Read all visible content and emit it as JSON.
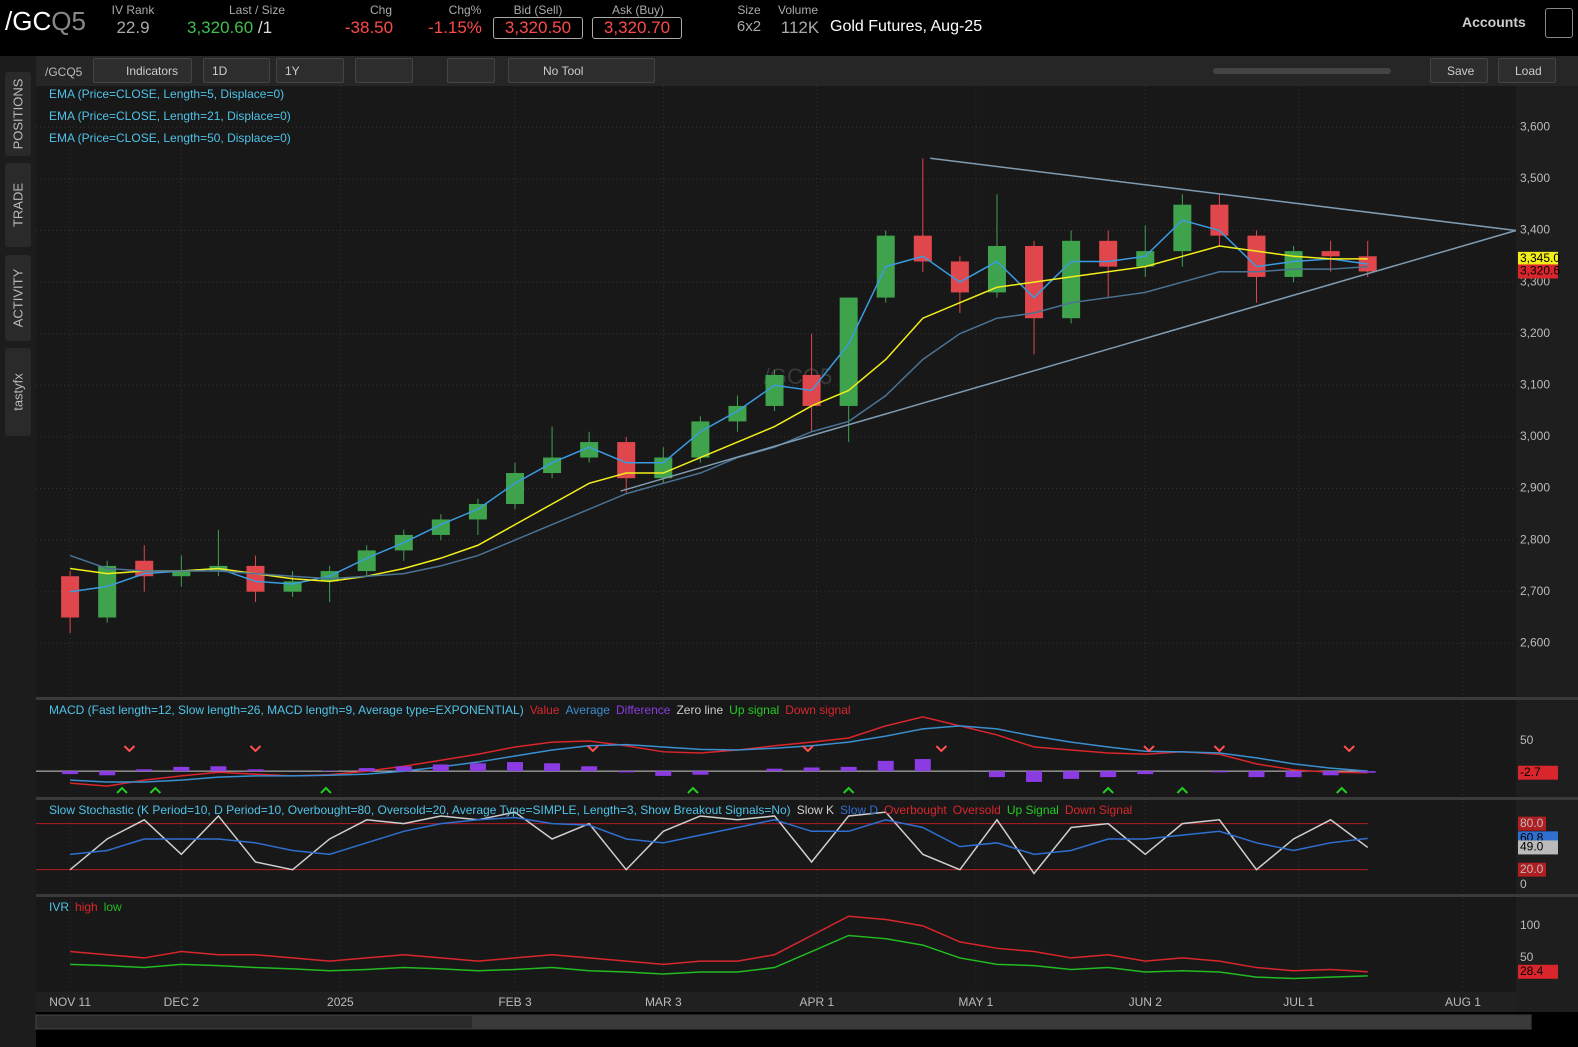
{
  "header": {
    "symbol": "/GC",
    "symbol_suffix": "Q5",
    "fields": [
      {
        "label": "IV Rank",
        "value": "22.9"
      },
      {
        "label": "Last / Size",
        "value": "3,320.60",
        "suffix": "/1"
      },
      {
        "label": "Chg",
        "value": "-38.50"
      },
      {
        "label": "Chg%",
        "value": "-1.15%"
      },
      {
        "label": "Bid (Sell)",
        "value": "3,320.50"
      },
      {
        "label": "Ask (Buy)",
        "value": "3,320.70"
      },
      {
        "label": "Size",
        "value": "6x2"
      },
      {
        "label": "Volume",
        "value": "112K"
      }
    ],
    "description": "Gold Futures, Aug-25",
    "accounts": "Accounts"
  },
  "sidebar": {
    "tabs": [
      "POSITIONS",
      "TRADE",
      "ACTIVITY",
      "tastyfx"
    ]
  },
  "toolbar": {
    "symbol": "/GCQ5",
    "indicators": "Indicators",
    "aggregation": "1D",
    "period": "1Y",
    "tool": "No Tool",
    "save": "Save",
    "load": "Load"
  },
  "chart_data": [
    {
      "type": "candlestick",
      "watermark": "/GCQ5",
      "up_color": "#3fa34d",
      "down_color": "#e0474c",
      "open": [
        2730,
        2650,
        2760,
        2730,
        2740,
        2750,
        2700,
        2720,
        2740,
        2780,
        2810,
        2840,
        2870,
        2930,
        2960,
        2990,
        2920,
        2960,
        3030,
        3060,
        3120,
        3060,
        3270,
        3390,
        3340,
        3280,
        3370,
        3230,
        3380,
        3330,
        3360,
        3450,
        3390,
        3310,
        3360,
        3350
      ],
      "high": [
        2740,
        2760,
        2790,
        2770,
        2820,
        2770,
        2740,
        2750,
        2790,
        2820,
        2850,
        2880,
        2950,
        3020,
        3010,
        3000,
        2980,
        3040,
        3080,
        3130,
        3200,
        3270,
        3400,
        3540,
        3350,
        3470,
        3380,
        3400,
        3400,
        3410,
        3470,
        3470,
        3400,
        3370,
        3380,
        3380
      ],
      "low": [
        2620,
        2640,
        2700,
        2710,
        2730,
        2680,
        2690,
        2680,
        2730,
        2760,
        2800,
        2810,
        2860,
        2920,
        2950,
        2890,
        2910,
        2950,
        3010,
        3050,
        3010,
        2990,
        3260,
        3320,
        3240,
        3270,
        3160,
        3220,
        3270,
        3310,
        3330,
        3370,
        3260,
        3300,
        3320,
        3310
      ],
      "close": [
        2650,
        2750,
        2730,
        2740,
        2750,
        2700,
        2720,
        2740,
        2780,
        2810,
        2840,
        2870,
        2930,
        2960,
        2990,
        2920,
        2960,
        3030,
        3060,
        3120,
        3060,
        3270,
        3390,
        3340,
        3280,
        3370,
        3230,
        3380,
        3330,
        3360,
        3450,
        3390,
        3310,
        3360,
        3350,
        3320.6
      ],
      "series": [
        {
          "name": "EMA (Price=CLOSE, Length=5, Displace=0)",
          "color": "#3a9be0",
          "values": [
            2700,
            2710,
            2735,
            2740,
            2745,
            2720,
            2715,
            2730,
            2765,
            2795,
            2830,
            2860,
            2910,
            2950,
            2980,
            2950,
            2950,
            3010,
            3050,
            3100,
            3090,
            3180,
            3330,
            3350,
            3300,
            3340,
            3270,
            3340,
            3340,
            3350,
            3420,
            3400,
            3330,
            3340,
            3345,
            3335
          ]
        },
        {
          "name": "EMA (Price=CLOSE, Length=21, Displace=0)",
          "color": "#f2ee1a",
          "values": [
            2745,
            2735,
            2740,
            2740,
            2745,
            2735,
            2725,
            2720,
            2730,
            2745,
            2765,
            2790,
            2830,
            2870,
            2910,
            2930,
            2930,
            2960,
            2990,
            3020,
            3060,
            3090,
            3150,
            3230,
            3260,
            3290,
            3300,
            3310,
            3320,
            3330,
            3350,
            3370,
            3360,
            3350,
            3345,
            3345
          ]
        },
        {
          "name": "EMA (Price=CLOSE, Length=50, Displace=0)",
          "color": "#4a7395",
          "values": [
            2770,
            2745,
            2740,
            2740,
            2740,
            2735,
            2730,
            2725,
            2730,
            2735,
            2750,
            2770,
            2800,
            2830,
            2860,
            2890,
            2910,
            2930,
            2960,
            2980,
            3010,
            3030,
            3080,
            3150,
            3200,
            3230,
            3240,
            3260,
            3270,
            3280,
            3300,
            3320,
            3320,
            3325,
            3325,
            3330
          ]
        }
      ],
      "trendlines": [
        {
          "x": [
            23.2,
            39
          ],
          "y": [
            3540,
            3400
          ],
          "color": "#7f9cb3"
        },
        {
          "x": [
            14.85,
            39
          ],
          "y": [
            2895,
            3400
          ],
          "color": "#7f9cb3"
        }
      ],
      "markers": [
        {
          "value": 3345,
          "label": "3,345.0",
          "color": "#f2ee1a"
        },
        {
          "value": 3320.6,
          "label": "3,320.6",
          "color": "#d9262c"
        }
      ],
      "xlim": [
        -0.92,
        39
      ],
      "ylim": [
        2494,
        3680
      ],
      "xticks": [
        {
          "value": 0,
          "label": "NOV 11"
        },
        {
          "value": 3,
          "label": "DEC 2"
        },
        {
          "value": 7.29,
          "label": "2025"
        },
        {
          "value": 12,
          "label": "FEB 3"
        },
        {
          "value": 16,
          "label": "MAR 3"
        },
        {
          "value": 20.14,
          "label": "APR 1"
        },
        {
          "value": 24.43,
          "label": "MAY 1"
        },
        {
          "value": 29,
          "label": "JUN 2"
        },
        {
          "value": 33.14,
          "label": "JUL 1"
        },
        {
          "value": 37.57,
          "label": "AUG 1"
        }
      ],
      "yticks": [
        {
          "value": 2600,
          "label": "2,600"
        },
        {
          "value": 2700,
          "label": "2,700"
        },
        {
          "value": 2800,
          "label": "2,800"
        },
        {
          "value": 2900,
          "label": "2,900"
        },
        {
          "value": 3000,
          "label": "3,000"
        },
        {
          "value": 3100,
          "label": "3,100"
        },
        {
          "value": 3200,
          "label": "3,200"
        },
        {
          "value": 3300,
          "label": "3,300"
        },
        {
          "value": 3400,
          "label": "3,400"
        },
        {
          "value": 3500,
          "label": "3,500"
        },
        {
          "value": 3600,
          "label": "3,600"
        }
      ],
      "grid": true
    },
    {
      "type": "line",
      "title": "MACD (Fast length=12, Slow length=26, MACD length=9, Average type=EXPONENTIAL)",
      "series": [
        {
          "name": "Value",
          "color": "#d9262c",
          "values": [
            -20,
            -25,
            -15,
            -8,
            -2,
            -5,
            -8,
            -6,
            0,
            8,
            18,
            28,
            40,
            48,
            50,
            42,
            32,
            30,
            35,
            42,
            48,
            55,
            75,
            90,
            75,
            60,
            40,
            35,
            30,
            28,
            32,
            28,
            12,
            2,
            -2,
            -2.7
          ]
        },
        {
          "name": "Average",
          "color": "#3a8fd0",
          "values": [
            -15,
            -18,
            -18,
            -15,
            -10,
            -8,
            -8,
            -7,
            -5,
            0,
            7,
            15,
            25,
            35,
            42,
            44,
            40,
            36,
            35,
            38,
            42,
            48,
            58,
            70,
            75,
            70,
            58,
            48,
            40,
            33,
            32,
            30,
            22,
            12,
            5,
            0
          ]
        },
        {
          "name": "Difference",
          "color": "#8a3be2",
          "style": "histogram",
          "values": [
            -5,
            -7,
            3,
            7,
            8,
            3,
            0,
            1,
            5,
            8,
            11,
            13,
            15,
            13,
            8,
            -2,
            -8,
            -6,
            0,
            4,
            6,
            7,
            17,
            20,
            0,
            -10,
            -18,
            -13,
            -10,
            -5,
            0,
            -2,
            -10,
            -10,
            -7,
            -2.7
          ]
        }
      ],
      "legend_extra": [
        {
          "name": "Zero line",
          "color": "#cccccc"
        },
        {
          "name": "Up signal",
          "color": "#22cc22"
        },
        {
          "name": "Down signal",
          "color": "#d9262c"
        }
      ],
      "up_signals": [
        1.4,
        2.3,
        6.9,
        16.8,
        21,
        28,
        30,
        34.3
      ],
      "down_signals": [
        1.6,
        5,
        14.1,
        19.9,
        23.5,
        29.1,
        31,
        34.5
      ],
      "ylim": [
        -43,
        118
      ],
      "yticks": [
        50
      ],
      "zero_line": true,
      "markers": [
        {
          "value": -2.7,
          "label": "-2.7",
          "color": "#d9262c"
        }
      ]
    },
    {
      "type": "line",
      "title": "Slow Stochastic (K Period=10, D Period=10, Overbought=80, Oversold=20, Average Type=SIMPLE, Length=3, Show Breakout Signals=No)",
      "series": [
        {
          "name": "Slow K",
          "color": "#cfcfcf",
          "values": [
            20,
            60,
            85,
            40,
            90,
            30,
            20,
            60,
            85,
            80,
            90,
            85,
            95,
            60,
            80,
            20,
            70,
            90,
            85,
            90,
            30,
            90,
            95,
            40,
            20,
            85,
            15,
            75,
            80,
            40,
            80,
            85,
            20,
            60,
            85,
            49
          ]
        },
        {
          "name": "Slow D",
          "color": "#2f6fd0",
          "values": [
            40,
            45,
            60,
            60,
            60,
            55,
            45,
            40,
            55,
            70,
            80,
            85,
            88,
            80,
            78,
            60,
            55,
            65,
            75,
            85,
            70,
            70,
            85,
            75,
            50,
            55,
            40,
            45,
            60,
            60,
            65,
            70,
            55,
            45,
            55,
            60.8
          ]
        }
      ],
      "legend_extra": [
        {
          "name": "Overbought",
          "color": "#d9262c"
        },
        {
          "name": "Oversold",
          "color": "#d9262c"
        },
        {
          "name": "Up Signal",
          "color": "#22cc22"
        },
        {
          "name": "Down Signal",
          "color": "#d9262c"
        }
      ],
      "ylim": [
        -10.4,
        110.8
      ],
      "yticks": [
        {
          "value": 80,
          "label": "80.0"
        },
        {
          "value": 20,
          "label": "20.0"
        },
        0
      ],
      "tick_line_color": "#b01e22",
      "markers": [
        {
          "value": 60.8,
          "label": "60.8",
          "color": "#2f6fd0"
        },
        {
          "value": 49,
          "label": "49.0",
          "color": "#bbbbbb"
        }
      ]
    },
    {
      "type": "line",
      "title": "IVR",
      "series": [
        {
          "name": "high",
          "color": "#d9262c",
          "values": [
            60,
            55,
            50,
            60,
            55,
            55,
            50,
            45,
            50,
            55,
            50,
            45,
            50,
            55,
            50,
            45,
            40,
            45,
            45,
            55,
            85,
            115,
            110,
            100,
            75,
            65,
            60,
            50,
            55,
            45,
            50,
            45,
            35,
            30,
            32,
            28.4
          ]
        },
        {
          "name": "low",
          "color": "#22bb22",
          "values": [
            40,
            38,
            35,
            40,
            38,
            35,
            33,
            30,
            32,
            35,
            33,
            30,
            32,
            35,
            30,
            28,
            25,
            28,
            28,
            35,
            60,
            85,
            80,
            70,
            50,
            40,
            38,
            32,
            35,
            28,
            30,
            28,
            20,
            18,
            20,
            22
          ]
        }
      ],
      "ylim": [
        0,
        145
      ],
      "yticks": [
        100,
        50
      ],
      "markers": [
        {
          "value": 28.4,
          "label": "28.4",
          "color": "#d9262c"
        }
      ]
    }
  ]
}
